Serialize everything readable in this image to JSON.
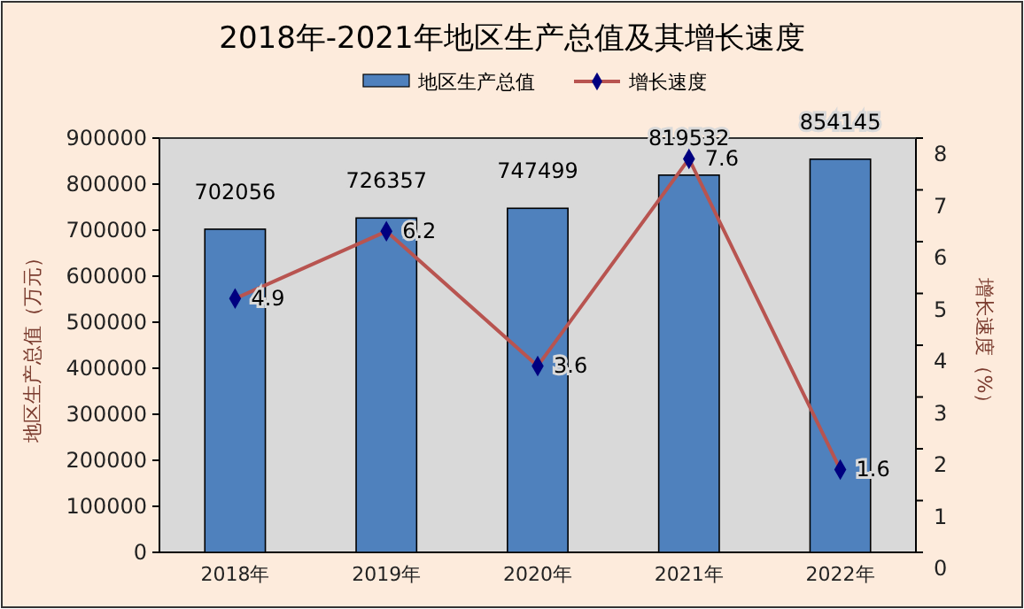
{
  "chart_data": {
    "type": "bar",
    "title": "2018年-2021年地区生产总值及其增长速度",
    "ylabel": "地区生产总值（万元）",
    "y2label": "增长速度（%）",
    "categories": [
      "2018年",
      "2019年",
      "2020年",
      "2021年",
      "2022年"
    ],
    "series": [
      {
        "name": "地区生产总值",
        "color": "#4f81bd",
        "values": [
          702056,
          726357,
          747499,
          819532,
          854145
        ]
      },
      {
        "name": "增长速度",
        "type": "line",
        "axis": "y2",
        "color": "#b85450",
        "marker": "diamond",
        "values": [
          4.9,
          6.2,
          3.6,
          7.6,
          1.6
        ]
      }
    ],
    "ylim": [
      0,
      900000
    ],
    "yticks": [
      0,
      100000,
      200000,
      300000,
      400000,
      500000,
      600000,
      700000,
      800000,
      900000
    ],
    "y2lim": [
      0,
      8
    ],
    "y2ticks": [
      0,
      1,
      2,
      3,
      4,
      5,
      6,
      7,
      8
    ],
    "data_labels": true,
    "legend": "top",
    "grid": false
  }
}
